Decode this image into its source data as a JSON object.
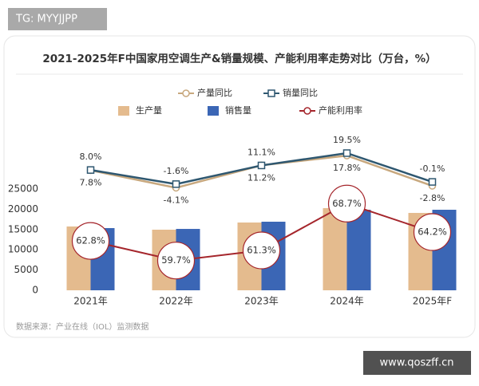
{
  "chart_data": {
    "type": "combo",
    "title": "2021-2025年F中国家用空调生产&销量规模、产能利用率走势对比（万台，%）",
    "source": "数据来源：产业在线（IOL）监测数据",
    "categories": [
      "2021年",
      "2022年",
      "2023年",
      "2024年",
      "2025年F"
    ],
    "ylim": [
      0,
      25000
    ],
    "yticks": [
      0,
      5000,
      10000,
      15000,
      20000,
      25000
    ],
    "y2lim": [
      55,
      71
    ],
    "y3lim": [
      -12,
      26
    ],
    "series": [
      {
        "name": "生产量",
        "kind": "bar",
        "color": "#e4bb8e",
        "values": [
          15750,
          14960,
          16730,
          20280,
          19100
        ]
      },
      {
        "name": "销售量",
        "kind": "bar",
        "color": "#3b66b5",
        "values": [
          15350,
          15150,
          16930,
          19880,
          19880
        ]
      },
      {
        "name": "产量同比",
        "kind": "line",
        "axis": "y3",
        "color": "#c8a87e",
        "marker": "circle",
        "label_side": "below",
        "values": [
          7.8,
          -4.1,
          11.2,
          17.8,
          -2.8
        ],
        "value_labels": [
          "7.8%",
          "-4.1%",
          "11.2%",
          "17.8%",
          "-2.8%"
        ]
      },
      {
        "name": "销量同比",
        "kind": "line",
        "axis": "y3",
        "color": "#2e5770",
        "marker": "square",
        "label_side": "above",
        "values": [
          8.0,
          -1.6,
          11.1,
          19.5,
          -0.1
        ],
        "value_labels": [
          "8.0%",
          "-1.6%",
          "11.1%",
          "19.5%",
          "-0.1%"
        ]
      },
      {
        "name": "产能利用率",
        "kind": "line",
        "axis": "y2",
        "color": "#a5262c",
        "marker": "bubble",
        "values": [
          62.8,
          59.7,
          61.3,
          68.7,
          64.2
        ],
        "value_labels": [
          "62.8%",
          "59.7%",
          "61.3%",
          "68.7%",
          "64.2%"
        ]
      }
    ]
  },
  "overlay": {
    "badge": "TG: MYYJJPP",
    "url": "www.qoszff.cn"
  }
}
